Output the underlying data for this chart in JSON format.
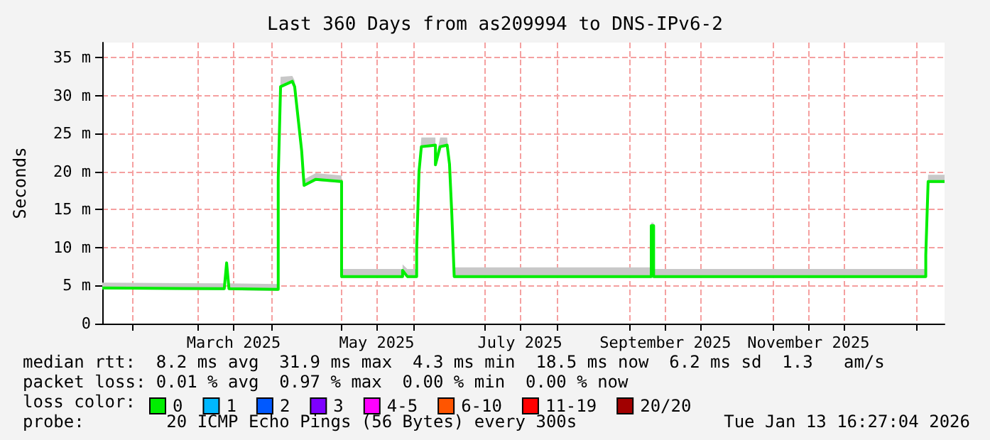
{
  "chart_data": {
    "type": "line",
    "title": "Last 360 Days from as209994 to DNS-IPv6-2",
    "ylabel": "Seconds",
    "x": [
      "2025-01-19",
      "2025-03-12",
      "2025-03-13",
      "2025-03-14",
      "2025-04-04",
      "2025-04-04",
      "2025-04-05",
      "2025-04-10",
      "2025-04-11",
      "2025-04-14",
      "2025-04-15",
      "2025-04-20",
      "2025-05-01",
      "2025-05-01",
      "2025-05-27",
      "2025-05-27",
      "2025-05-29",
      "2025-06-02",
      "2025-06-02",
      "2025-06-03",
      "2025-06-04",
      "2025-06-10",
      "2025-06-10",
      "2025-06-12",
      "2025-06-15",
      "2025-06-16",
      "2025-06-17",
      "2025-06-18",
      "2025-09-10",
      "2025-09-10",
      "2025-09-11",
      "2025-09-11",
      "2026-01-05",
      "2026-01-05",
      "2026-01-06",
      "2026-01-13"
    ],
    "series": [
      {
        "name": "0",
        "color": "#00ee00",
        "values": [
          4.7,
          4.6,
          8,
          4.6,
          4.5,
          19.2,
          31.2,
          31.9,
          31.2,
          22.7,
          18.2,
          19,
          18.7,
          6.2,
          6.2,
          7,
          6.2,
          6.2,
          9.8,
          20,
          23.3,
          23.5,
          20.9,
          23.3,
          23.5,
          21,
          14.3,
          6.2,
          6.2,
          12.9,
          12.9,
          6.2,
          6.2,
          9,
          18.7,
          18.7
        ],
        "lower": [
          4.5,
          4.4,
          7.8,
          4.4,
          4.3,
          19,
          31,
          31.7,
          31,
          22.5,
          18,
          18.8,
          18.5,
          6,
          6,
          6.8,
          6,
          6,
          9.6,
          19.8,
          23.1,
          23.3,
          20.7,
          23.1,
          23.3,
          20.8,
          14.1,
          6,
          6,
          12.7,
          12.7,
          6,
          6,
          8.8,
          18.5,
          18.5
        ],
        "upper": [
          5.4,
          5.3,
          8.2,
          5.3,
          5.2,
          19.5,
          32.5,
          32.6,
          32,
          23,
          19,
          19.8,
          19.5,
          7.2,
          7.2,
          7.8,
          7.2,
          7.2,
          10.1,
          20.3,
          24.5,
          24.5,
          21.5,
          24.5,
          24.5,
          21.5,
          14.8,
          7.4,
          7.4,
          13.3,
          13.3,
          7.2,
          7.2,
          9.3,
          19.6,
          19.6
        ]
      },
      {
        "name": "1",
        "color": "#00b8ff",
        "values": [
          null,
          null,
          null,
          null,
          null,
          null,
          null,
          null,
          null,
          null,
          null,
          null,
          null,
          null,
          null,
          null,
          null,
          null,
          null,
          null,
          null,
          null,
          null,
          null,
          null,
          null,
          null,
          null,
          null,
          null,
          null,
          null,
          null,
          null,
          null,
          null
        ]
      },
      {
        "name": "2",
        "color": "#0059ff",
        "values": [
          null,
          null,
          null,
          null,
          null,
          null,
          null,
          null,
          null,
          null,
          null,
          null,
          null,
          null,
          null,
          null,
          null,
          null,
          null,
          null,
          null,
          null,
          null,
          null,
          null,
          null,
          null,
          null,
          null,
          null,
          null,
          null,
          null,
          null,
          null,
          null
        ]
      },
      {
        "name": "3",
        "color": "#7e00ff",
        "values": [
          null,
          null,
          null,
          null,
          null,
          null,
          null,
          null,
          null,
          null,
          null,
          null,
          null,
          null,
          null,
          null,
          null,
          null,
          null,
          null,
          null,
          null,
          null,
          null,
          null,
          null,
          null,
          null,
          null,
          null,
          null,
          null,
          null,
          null,
          null,
          null
        ]
      },
      {
        "name": "4-5",
        "color": "#ff00ff",
        "values": [
          null,
          null,
          null,
          null,
          null,
          null,
          null,
          null,
          null,
          null,
          null,
          null,
          null,
          null,
          null,
          null,
          null,
          null,
          null,
          null,
          null,
          null,
          null,
          null,
          null,
          null,
          null,
          null,
          null,
          null,
          null,
          null,
          null,
          null,
          null,
          null
        ]
      },
      {
        "name": "6-10",
        "color": "#ff5500",
        "values": [
          null,
          null,
          null,
          null,
          null,
          null,
          null,
          null,
          null,
          null,
          null,
          null,
          null,
          null,
          null,
          null,
          null,
          null,
          null,
          null,
          null,
          null,
          null,
          null,
          null,
          null,
          null,
          null,
          null,
          null,
          null,
          null,
          null,
          null,
          null,
          null
        ]
      },
      {
        "name": "11-19",
        "color": "#ff0000",
        "values": [
          null,
          null,
          null,
          null,
          null,
          null,
          null,
          null,
          null,
          null,
          null,
          null,
          null,
          null,
          null,
          null,
          null,
          null,
          null,
          null,
          null,
          null,
          null,
          null,
          null,
          null,
          null,
          null,
          null,
          null,
          null,
          null,
          null,
          null,
          null,
          null
        ]
      },
      {
        "name": "20/20",
        "color": "#a10000",
        "values": [
          null,
          null,
          null,
          null,
          null,
          null,
          null,
          null,
          null,
          null,
          null,
          null,
          null,
          null,
          null,
          null,
          null,
          null,
          null,
          null,
          null,
          null,
          null,
          null,
          null,
          null,
          null,
          null,
          null,
          null,
          null,
          null,
          null,
          null,
          null,
          null
        ]
      }
    ],
    "legend_title": "loss color:",
    "legend": "bottom",
    "grid": true,
    "marker": "none",
    "line_style": "solid",
    "xlim": [
      "2025-01-19",
      "2026-01-13"
    ],
    "xticks": [
      {
        "value": "2025-02-01",
        "label": null
      },
      {
        "value": "2025-03-01",
        "label": null
      },
      {
        "value": "2025-03-16",
        "label": "March 2025"
      },
      {
        "value": "2025-04-01",
        "label": null
      },
      {
        "value": "2025-05-01",
        "label": null
      },
      {
        "value": "2025-05-16",
        "label": "May 2025"
      },
      {
        "value": "2025-06-01",
        "label": null
      },
      {
        "value": "2025-07-01",
        "label": null
      },
      {
        "value": "2025-07-16",
        "label": "July 2025"
      },
      {
        "value": "2025-08-01",
        "label": null
      },
      {
        "value": "2025-09-01",
        "label": null
      },
      {
        "value": "2025-09-16",
        "label": "September 2025"
      },
      {
        "value": "2025-10-01",
        "label": null
      },
      {
        "value": "2025-11-01",
        "label": null
      },
      {
        "value": "2025-11-16",
        "label": "November 2025"
      },
      {
        "value": "2025-12-01",
        "label": null
      },
      {
        "value": "2026-01-01",
        "label": null
      }
    ],
    "ylim": [
      0,
      37
    ],
    "yticks": [
      0,
      {
        "value": 5,
        "label": "5 m"
      },
      {
        "value": 10,
        "label": "10 m"
      },
      {
        "value": 15,
        "label": "15 m"
      },
      {
        "value": 20,
        "label": "20 m"
      },
      {
        "value": 25,
        "label": "25 m"
      },
      {
        "value": 30,
        "label": "30 m"
      },
      {
        "value": 35,
        "label": "35 m"
      }
    ],
    "annotations": [
      "median rtt:  8.2 ms avg  31.9 ms max  4.3 ms min  18.5 ms now  6.2 ms sd  1.3   am/s",
      "packet loss: 0.01 % avg  0.97 % max  0.00 % min  0.00 % now",
      "probe:        20 ICMP Echo Pings (56 Bytes) every 300s",
      "Tue Jan 13 16:27:04 2026"
    ]
  }
}
